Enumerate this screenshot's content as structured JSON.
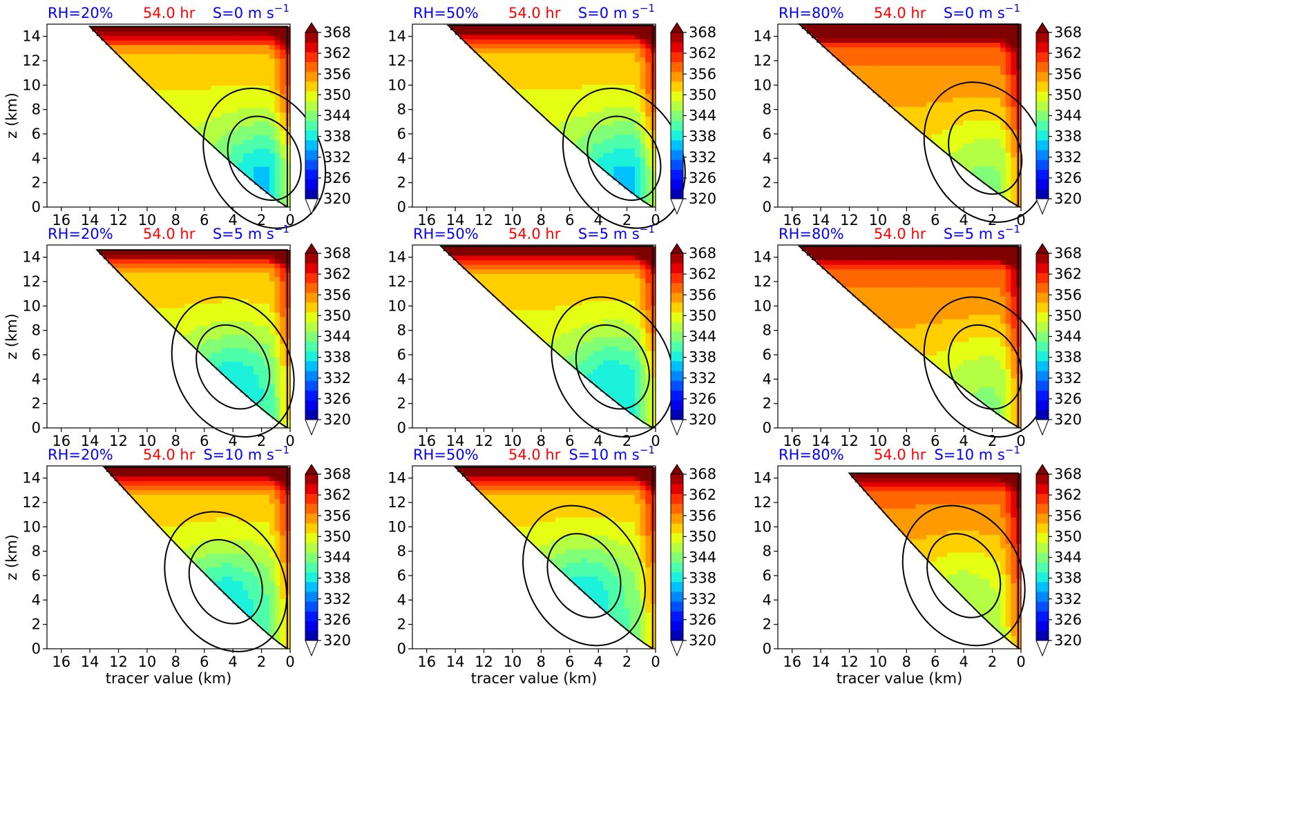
{
  "figure": {
    "colorbar_ticks": [
      "368",
      "362",
      "356",
      "350",
      "344",
      "338",
      "332",
      "326",
      "320"
    ],
    "colormap": [
      "#00007f",
      "#0000b2",
      "#0000ea",
      "#0018ff",
      "#0050ff",
      "#0088ff",
      "#00c0ff",
      "#1cf2db",
      "#4dffaa",
      "#80ff77",
      "#b4ff44",
      "#e4ff13",
      "#ffcf00",
      "#ff9a00",
      "#ff6600",
      "#ff3000",
      "#e50000",
      "#a50000",
      "#7f0000"
    ],
    "x_ticks": [
      "16",
      "14",
      "12",
      "10",
      "8",
      "6",
      "4",
      "2",
      "0"
    ],
    "y_ticks": [
      "14",
      "12",
      "10",
      "8",
      "6",
      "4",
      "2",
      "0"
    ],
    "ylabel": "z (km)",
    "xlabel": "tracer value (km)",
    "colors": {
      "rh_label": "#0000ff",
      "time_label": "#ff0000",
      "shear_label": "#0000ff",
      "contour": "#000000"
    }
  },
  "chart_data": [
    {
      "type": "heatmap",
      "rh": "RH=20%",
      "time": "54.0 hr",
      "shear": "S=0 m s",
      "shear_exp": "−1",
      "xlim": [
        17,
        0
      ],
      "ylim": [
        0,
        15
      ],
      "clim": [
        320,
        368
      ],
      "fill_top": 14.8,
      "bottom_x": 0.2,
      "top_x": 14,
      "peak_x": 1.8,
      "peak_z": 3.0
    },
    {
      "type": "heatmap",
      "rh": "RH=50%",
      "time": "54.0 hr",
      "shear": "S=0 m s",
      "shear_exp": "−1",
      "xlim": [
        17,
        0
      ],
      "ylim": [
        0,
        15
      ],
      "clim": [
        320,
        368
      ],
      "fill_top": 14.9,
      "bottom_x": 0.2,
      "top_x": 14.5,
      "peak_x": 2.2,
      "peak_z": 3.0
    },
    {
      "type": "heatmap",
      "rh": "RH=80%",
      "time": "54.0 hr",
      "shear": "S=0 m s",
      "shear_exp": "−1",
      "xlim": [
        17,
        0
      ],
      "ylim": [
        0,
        15
      ],
      "clim": [
        320,
        368
      ],
      "fill_top": 15.0,
      "bottom_x": 0.1,
      "top_x": 15.5,
      "peak_x": 2.5,
      "peak_z": 3.5
    },
    {
      "type": "heatmap",
      "rh": "RH=20%",
      "time": "54.0 hr",
      "shear": "S=5 m s",
      "shear_exp": "−1",
      "xlim": [
        17,
        0
      ],
      "ylim": [
        0,
        15
      ],
      "clim": [
        320,
        368
      ],
      "fill_top": 14.6,
      "bottom_x": 0.2,
      "top_x": 13.5,
      "peak_x": 4.0,
      "peak_z": 4.0
    },
    {
      "type": "heatmap",
      "rh": "RH=50%",
      "time": "54.0 hr",
      "shear": "S=5 m s",
      "shear_exp": "−1",
      "xlim": [
        17,
        0
      ],
      "ylim": [
        0,
        15
      ],
      "clim": [
        320,
        368
      ],
      "fill_top": 14.9,
      "bottom_x": 0.2,
      "top_x": 15.0,
      "peak_x": 3.0,
      "peak_z": 4.0
    },
    {
      "type": "heatmap",
      "rh": "RH=80%",
      "time": "54.0 hr",
      "shear": "S=5 m s",
      "shear_exp": "−1",
      "xlim": [
        17,
        0
      ],
      "ylim": [
        0,
        15
      ],
      "clim": [
        320,
        368
      ],
      "fill_top": 14.9,
      "bottom_x": 0.1,
      "top_x": 15.5,
      "peak_x": 2.5,
      "peak_z": 4.0
    },
    {
      "type": "heatmap",
      "rh": "RH=20%",
      "time": "54.0 hr",
      "shear": "S=10 m s",
      "shear_exp": "−1",
      "xlim": [
        17,
        0
      ],
      "ylim": [
        0,
        15
      ],
      "clim": [
        320,
        368
      ],
      "fill_top": 14.9,
      "bottom_x": 0.2,
      "top_x": 13.0,
      "peak_x": 4.5,
      "peak_z": 4.5
    },
    {
      "type": "heatmap",
      "rh": "RH=50%",
      "time": "54.0 hr",
      "shear": "S=10 m s",
      "shear_exp": "−1",
      "xlim": [
        17,
        0
      ],
      "ylim": [
        0,
        15
      ],
      "clim": [
        320,
        368
      ],
      "fill_top": 14.9,
      "bottom_x": 0.2,
      "top_x": 14.0,
      "peak_x": 5.0,
      "peak_z": 5.0
    },
    {
      "type": "heatmap",
      "rh": "RH=80%",
      "time": "54.0 hr",
      "shear": "S=10 m s",
      "shear_exp": "−1",
      "xlim": [
        17,
        0
      ],
      "ylim": [
        0,
        15
      ],
      "clim": [
        320,
        368
      ],
      "fill_top": 14.4,
      "bottom_x": 0.1,
      "top_x": 12.0,
      "peak_x": 4.0,
      "peak_z": 5.0
    }
  ]
}
